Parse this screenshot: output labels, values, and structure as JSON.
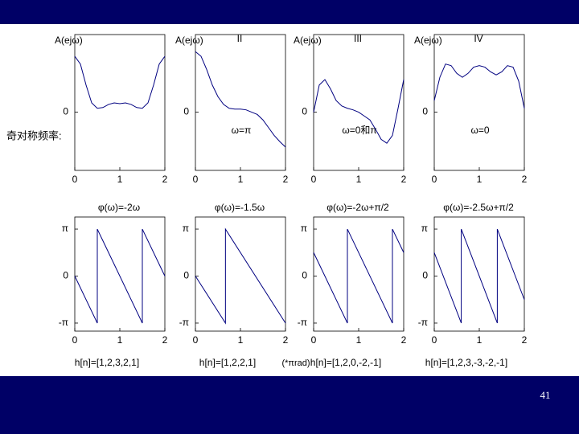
{
  "slide": {
    "page_number": "41",
    "left_note": "奇对称频率:",
    "unit_note": "(*πrad)"
  },
  "chart_data": [
    {
      "type": "line",
      "ylabel": "A(ejω)",
      "color": "#000080",
      "x": [
        0,
        0.125,
        0.25,
        0.375,
        0.5,
        0.625,
        0.75,
        0.875,
        1,
        1.125,
        1.25,
        1.375,
        1.5,
        1.625,
        1.75,
        1.875,
        2
      ],
      "values": [
        0.72,
        0.62,
        0.35,
        0.12,
        0.05,
        0.06,
        0.1,
        0.12,
        0.11,
        0.12,
        0.1,
        0.06,
        0.05,
        0.12,
        0.35,
        0.62,
        0.72
      ],
      "xlim": [
        0,
        2
      ],
      "xticks": [
        0,
        1,
        2
      ],
      "ylim": [
        -0.75,
        1
      ],
      "yticks": [
        0
      ]
    },
    {
      "type": "line",
      "ylabel": "A(ejω)",
      "title": "II",
      "annotation": "ω=π",
      "color": "#000080",
      "x": [
        0,
        0.125,
        0.25,
        0.375,
        0.5,
        0.625,
        0.75,
        0.875,
        1,
        1.125,
        1.25,
        1.375,
        1.5,
        1.625,
        1.75,
        1.875,
        2
      ],
      "values": [
        0.78,
        0.72,
        0.55,
        0.35,
        0.2,
        0.1,
        0.05,
        0.04,
        0.04,
        0.03,
        0.0,
        -0.03,
        -0.1,
        -0.2,
        -0.3,
        -0.38,
        -0.45
      ],
      "xlim": [
        0,
        2
      ],
      "xticks": [
        0,
        1,
        2
      ],
      "ylim": [
        -0.75,
        1
      ],
      "yticks": [
        0
      ]
    },
    {
      "type": "line",
      "ylabel": "A(ejω)",
      "title": "III",
      "annotation": "ω=0和π",
      "color": "#000080",
      "x": [
        0,
        0.125,
        0.25,
        0.375,
        0.5,
        0.625,
        0.75,
        0.875,
        1,
        1.125,
        1.25,
        1.375,
        1.5,
        1.625,
        1.75,
        1.875,
        2
      ],
      "values": [
        0,
        0.35,
        0.42,
        0.3,
        0.15,
        0.08,
        0.05,
        0.03,
        0.0,
        -0.05,
        -0.1,
        -0.22,
        -0.35,
        -0.4,
        -0.3,
        0.05,
        0.42
      ],
      "xlim": [
        0,
        2
      ],
      "xticks": [
        0,
        1,
        2
      ],
      "ylim": [
        -0.75,
        1
      ],
      "yticks": [
        0
      ]
    },
    {
      "type": "line",
      "ylabel": "A(ejω)",
      "title": "IV",
      "annotation": "ω=0",
      "color": "#000080",
      "x": [
        0,
        0.125,
        0.25,
        0.375,
        0.5,
        0.625,
        0.75,
        0.875,
        1,
        1.125,
        1.25,
        1.375,
        1.5,
        1.625,
        1.75,
        1.875,
        2
      ],
      "values": [
        0.15,
        0.45,
        0.62,
        0.6,
        0.5,
        0.45,
        0.5,
        0.58,
        0.6,
        0.58,
        0.52,
        0.48,
        0.52,
        0.6,
        0.58,
        0.4,
        0.05
      ],
      "xlim": [
        0,
        2
      ],
      "xticks": [
        0,
        1,
        2
      ],
      "ylim": [
        -0.75,
        1
      ],
      "yticks": [
        0
      ]
    },
    {
      "type": "line",
      "title": "φ(ω)=-2ω",
      "caption": "h[n]=[1,2,3,2,1]",
      "color": "#000080",
      "x": [
        0,
        0.5,
        0.5,
        1.5,
        1.5,
        2
      ],
      "values": [
        0,
        -3.1416,
        3.1416,
        -3.1416,
        3.1416,
        0
      ],
      "xlim": [
        0,
        2
      ],
      "xticks": [
        0,
        1,
        2
      ],
      "ylim": [
        -3.68,
        3.95
      ],
      "yticks": [
        {
          "value": 3.1416,
          "label": "π"
        },
        0,
        {
          "value": -3.1416,
          "label": "-π"
        }
      ]
    },
    {
      "type": "line",
      "title": "φ(ω)=-1.5ω",
      "caption": "h[n]=[1,2,2,1]",
      "color": "#000080",
      "x": [
        0,
        0.667,
        0.667,
        2
      ],
      "values": [
        0,
        -3.1416,
        3.1416,
        -3.1416
      ],
      "xlim": [
        0,
        2
      ],
      "xticks": [
        0,
        1,
        2
      ],
      "ylim": [
        -3.68,
        3.95
      ],
      "yticks": [
        {
          "value": 3.1416,
          "label": "π"
        },
        0,
        {
          "value": -3.1416,
          "label": "-π"
        }
      ]
    },
    {
      "type": "line",
      "title": "φ(ω)=-2ω+π/2",
      "caption": "h[n]=[1,2,0,-2,-1]",
      "color": "#000080",
      "x": [
        0,
        0.75,
        0.75,
        1.75,
        1.75,
        2
      ],
      "values": [
        1.571,
        -3.1416,
        3.1416,
        -3.1416,
        3.1416,
        1.571
      ],
      "xlim": [
        0,
        2
      ],
      "xticks": [
        0,
        1,
        2
      ],
      "ylim": [
        -3.68,
        3.95
      ],
      "yticks": [
        {
          "value": 3.1416,
          "label": "π"
        },
        0,
        {
          "value": -3.1416,
          "label": "-π"
        }
      ]
    },
    {
      "type": "line",
      "title": "φ(ω)=-2.5ω+π/2",
      "caption": "h[n]=[1,2,3,-3,-2,-1]",
      "color": "#000080",
      "x": [
        0,
        0.6,
        0.6,
        1.4,
        1.4,
        2
      ],
      "values": [
        1.571,
        -3.1416,
        3.1416,
        -3.1416,
        3.1416,
        -1.571
      ],
      "xlim": [
        0,
        2
      ],
      "xticks": [
        0,
        1,
        2
      ],
      "ylim": [
        -3.68,
        3.95
      ],
      "yticks": [
        {
          "value": 3.1416,
          "label": "π"
        },
        0,
        {
          "value": -3.1416,
          "label": "-π"
        }
      ]
    }
  ]
}
